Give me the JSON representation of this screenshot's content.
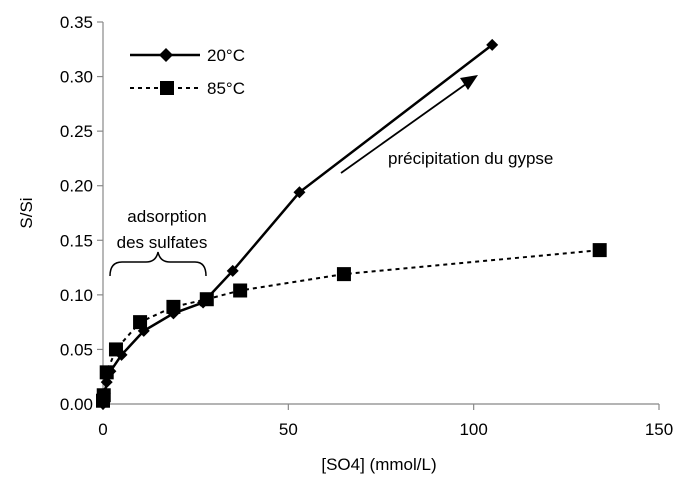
{
  "chart_data": {
    "type": "scatter",
    "xlabel": "[SO4] (mmol/L)",
    "ylabel": "S/Si",
    "xlim": [
      0,
      150
    ],
    "ylim": [
      0,
      0.35
    ],
    "x_ticks": [
      "0",
      "50",
      "100",
      "150"
    ],
    "y_ticks": [
      "0.00",
      "0.05",
      "0.10",
      "0.15",
      "0.20",
      "0.25",
      "0.30",
      "0.35"
    ],
    "grid": false,
    "legend_position": "top-left",
    "series": [
      {
        "name": "20°C",
        "marker": "diamond",
        "line": "solid",
        "color": "#000000",
        "points": [
          [
            0,
            0.0
          ],
          [
            0.5,
            0.01
          ],
          [
            1,
            0.02
          ],
          [
            2,
            0.03
          ],
          [
            5,
            0.045
          ],
          [
            11,
            0.067
          ],
          [
            19,
            0.083
          ],
          [
            27,
            0.093
          ],
          [
            35,
            0.122
          ],
          [
            53,
            0.194
          ],
          [
            105,
            0.329
          ]
        ]
      },
      {
        "name": "85°C",
        "marker": "square",
        "line": "dotted",
        "color": "#000000",
        "points": [
          [
            0,
            0.003
          ],
          [
            0.2,
            0.008
          ],
          [
            1,
            0.029
          ],
          [
            3.5,
            0.05
          ],
          [
            10,
            0.075
          ],
          [
            19,
            0.089
          ],
          [
            28,
            0.096
          ],
          [
            37,
            0.104
          ],
          [
            65,
            0.119
          ],
          [
            134,
            0.141
          ]
        ]
      }
    ],
    "annotations": {
      "gypsum": "précipitation du gypse",
      "adsorption_line1": "adsorption",
      "adsorption_line2": "des sulfates"
    }
  }
}
